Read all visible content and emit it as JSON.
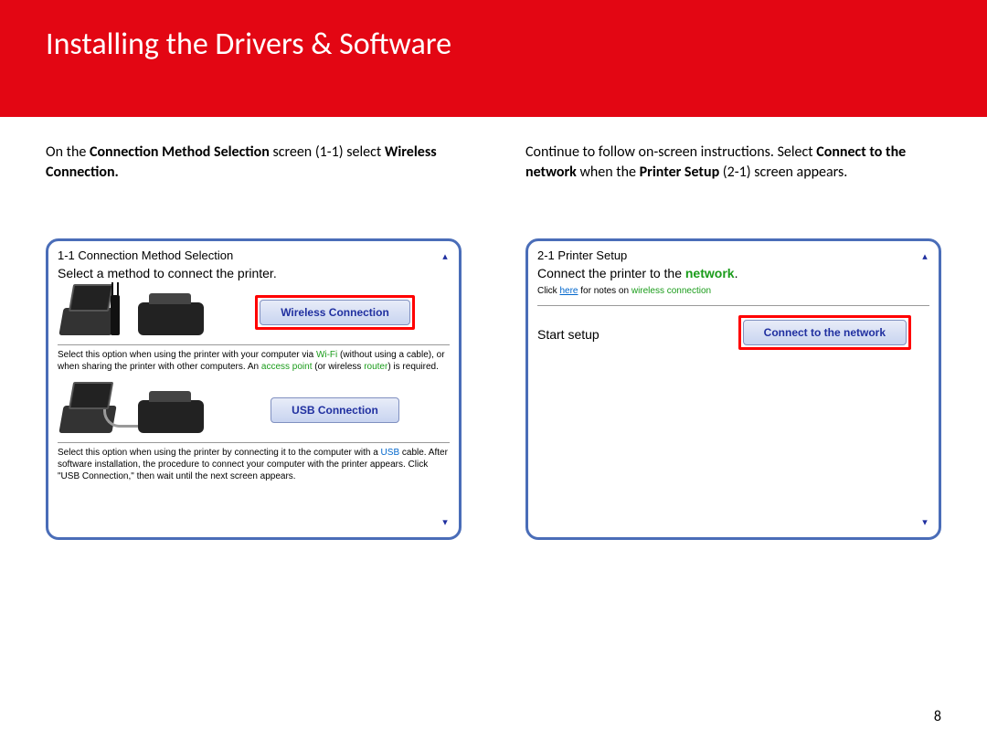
{
  "header": {
    "title": "Installing  the Drivers & Software"
  },
  "left": {
    "instr_pre": "On the ",
    "instr_bold1": "Connection Method Selection",
    "instr_mid": " screen (1-1) select ",
    "instr_bold2": "Wireless Connection.",
    "dlg_title": "1-1 Connection Method Selection",
    "dlg_sub": "Select a method to connect the printer.",
    "btn_wireless": "Wireless Connection",
    "btn_usb": "USB Connection",
    "wireless_desc_1": "Select this option when using the printer with your computer via ",
    "wireless_hl1": "Wi-Fi",
    "wireless_desc_2": " (without using a cable), or when sharing the printer with other computers. An ",
    "wireless_hl2": "access point",
    "wireless_desc_3": " (or wireless ",
    "wireless_hl3": "router",
    "wireless_desc_4": ") is required.",
    "usb_desc_1": "Select this option when using the printer by connecting it to the computer with a ",
    "usb_hl1": "USB",
    "usb_desc_2": " cable. After software installation, the procedure to connect your computer with the printer appears. Click \"USB Connection,\" then wait until the next screen appears."
  },
  "right": {
    "instr_pre": "Continue to follow on-screen instructions. Select ",
    "instr_bold1": "Connect to the network",
    "instr_mid": " when the ",
    "instr_bold2": "Printer Setup",
    "instr_post": " (2-1) screen appears.",
    "dlg_title": "2-1 Printer Setup",
    "dlg_sub_1": "Connect the printer to the ",
    "dlg_sub_green": "network",
    "dlg_sub_2": ".",
    "note_1": "Click ",
    "note_link": "here",
    "note_2": " for notes on ",
    "note_green": "wireless connection",
    "start_label": "Start setup",
    "btn_connect": "Connect to the network"
  },
  "page_number": "8",
  "scroll_up": "▴",
  "scroll_down": "▾"
}
